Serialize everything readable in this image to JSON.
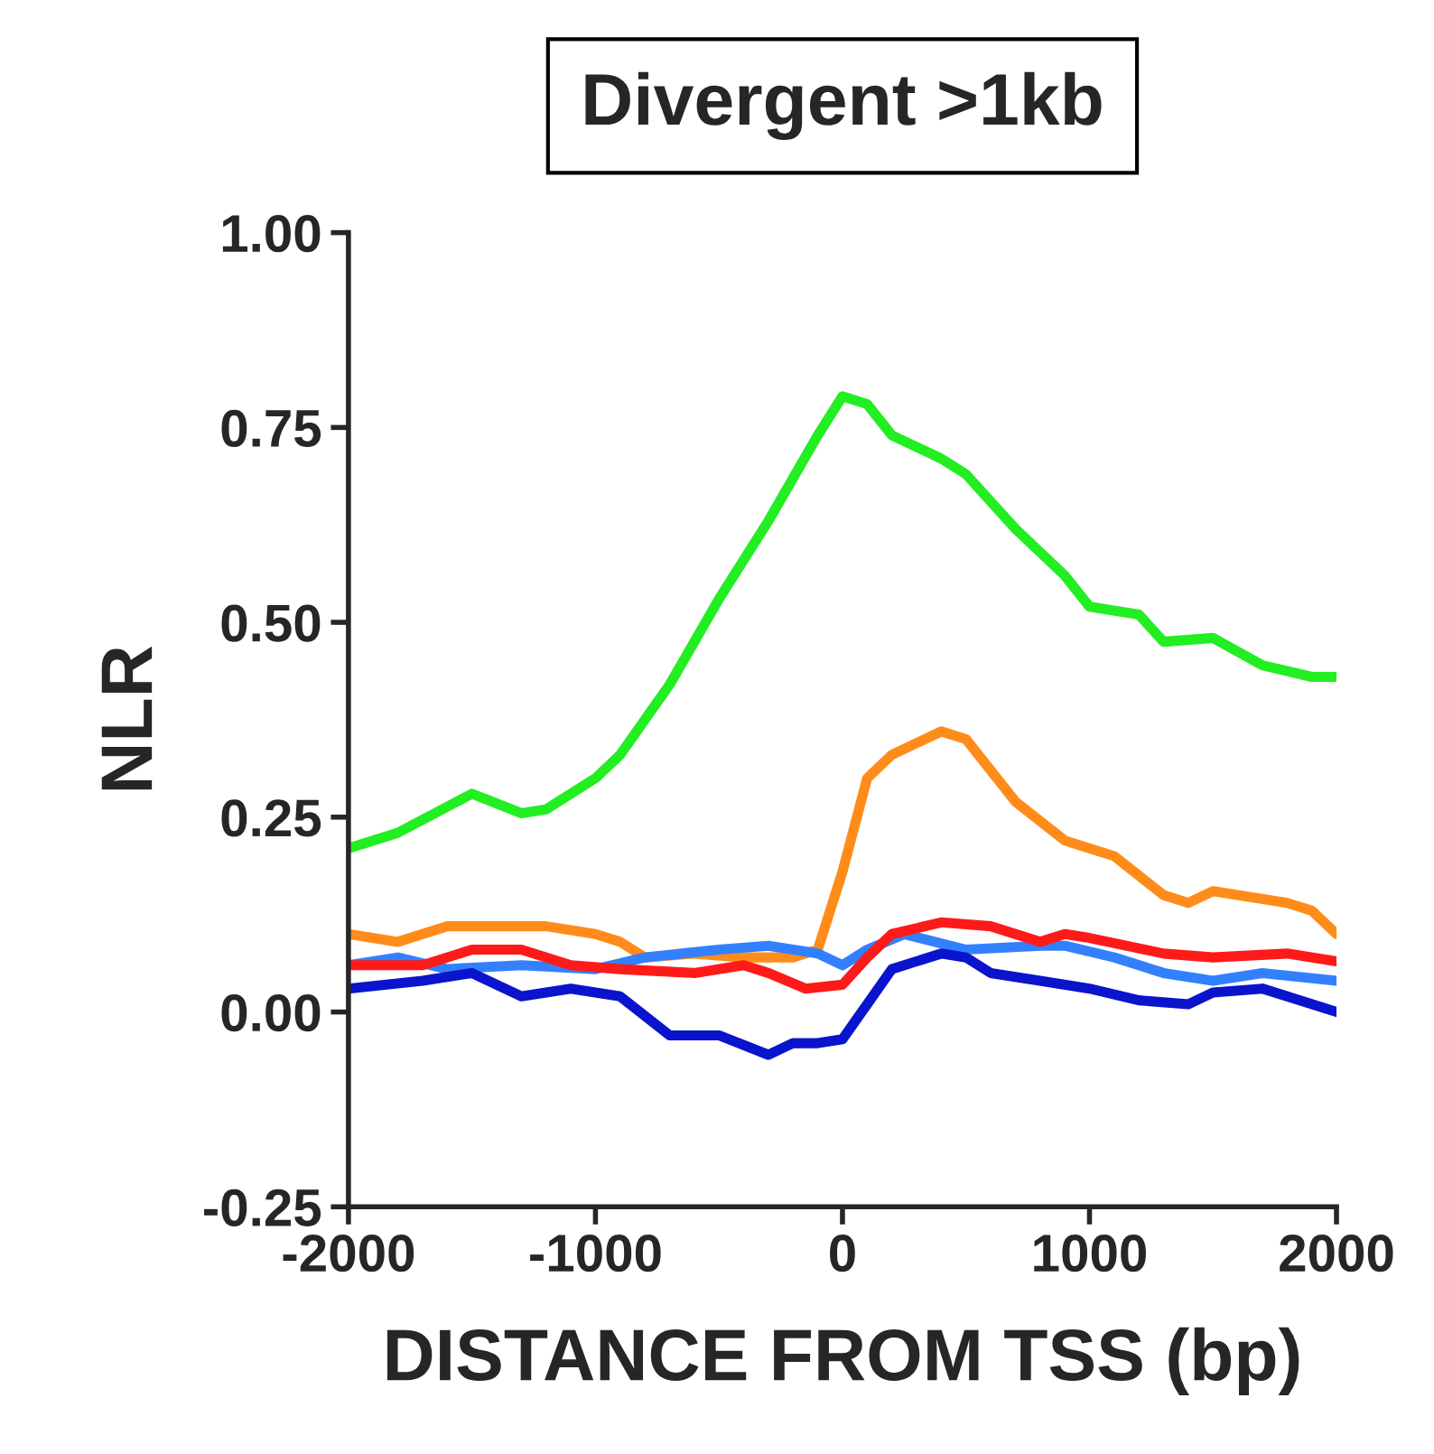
{
  "chart_data": {
    "type": "line",
    "title": "Divergent >1kb",
    "xlabel": "DISTANCE FROM TSS (bp)",
    "ylabel": "NLR",
    "xlim": [
      -2000,
      2000
    ],
    "xticks": [
      {
        "value": -2000,
        "label": "-2000"
      },
      {
        "value": -1000,
        "label": "-1000"
      },
      0,
      1000,
      2000
    ],
    "ylim": [
      -0.25,
      1.0
    ],
    "yticks": [
      {
        "value": -0.25,
        "label": "-0.25"
      },
      {
        "value": 0,
        "label": "0.00"
      },
      {
        "value": 0.25,
        "label": "0.25"
      },
      {
        "value": 0.5,
        "label": "0.50"
      },
      {
        "value": 0.75,
        "label": "0.75"
      },
      {
        "value": 1.0,
        "label": "1.00"
      }
    ],
    "grid": false,
    "legend": false,
    "marker": "none",
    "line_style": "solid",
    "series": [
      {
        "color": "#22ee22",
        "x": [
          -2000,
          -1800,
          -1500,
          -1300,
          -1200,
          -1000,
          -900,
          -700,
          -500,
          -300,
          -100,
          0,
          100,
          200,
          400,
          500,
          700,
          900,
          1000,
          1200,
          1300,
          1500,
          1700,
          1900,
          2000
        ],
        "values": [
          0.21,
          0.23,
          0.28,
          0.255,
          0.26,
          0.3,
          0.33,
          0.42,
          0.53,
          0.63,
          0.74,
          0.79,
          0.78,
          0.74,
          0.71,
          0.69,
          0.62,
          0.56,
          0.52,
          0.51,
          0.475,
          0.48,
          0.445,
          0.43,
          0.43
        ]
      },
      {
        "color": "#ff8c1a",
        "x": [
          -2000,
          -1800,
          -1600,
          -1200,
          -1000,
          -900,
          -800,
          -600,
          -400,
          -200,
          -100,
          0,
          100,
          200,
          400,
          500,
          700,
          900,
          1100,
          1300,
          1400,
          1500,
          1800,
          1900,
          2000
        ],
        "values": [
          0.1,
          0.09,
          0.11,
          0.11,
          0.1,
          0.09,
          0.07,
          0.075,
          0.07,
          0.07,
          0.08,
          0.18,
          0.3,
          0.33,
          0.36,
          0.35,
          0.27,
          0.22,
          0.2,
          0.15,
          0.14,
          0.155,
          0.14,
          0.13,
          0.1
        ]
      },
      {
        "color": "#3380ff",
        "x": [
          -2000,
          -1800,
          -1600,
          -1300,
          -1000,
          -800,
          -500,
          -300,
          -100,
          0,
          100,
          250,
          500,
          800,
          900,
          1100,
          1300,
          1500,
          1700,
          2000
        ],
        "values": [
          0.06,
          0.07,
          0.055,
          0.06,
          0.055,
          0.07,
          0.08,
          0.085,
          0.075,
          0.06,
          0.08,
          0.1,
          0.08,
          0.085,
          0.085,
          0.07,
          0.05,
          0.04,
          0.05,
          0.04
        ]
      },
      {
        "color": "#ff1a1a",
        "x": [
          -2000,
          -1700,
          -1500,
          -1300,
          -1100,
          -900,
          -600,
          -400,
          -300,
          -150,
          0,
          100,
          200,
          400,
          600,
          800,
          900,
          1000,
          1300,
          1500,
          1800,
          2000
        ],
        "values": [
          0.06,
          0.06,
          0.08,
          0.08,
          0.06,
          0.055,
          0.05,
          0.06,
          0.05,
          0.03,
          0.035,
          0.07,
          0.1,
          0.115,
          0.11,
          0.09,
          0.1,
          0.095,
          0.075,
          0.07,
          0.075,
          0.065
        ]
      },
      {
        "color": "#0a14cc",
        "x": [
          -2000,
          -1700,
          -1500,
          -1300,
          -1100,
          -900,
          -700,
          -500,
          -300,
          -200,
          -100,
          0,
          100,
          200,
          400,
          500,
          600,
          800,
          1000,
          1200,
          1400,
          1500,
          1700,
          2000
        ],
        "values": [
          0.03,
          0.04,
          0.05,
          0.02,
          0.03,
          0.02,
          -0.03,
          -0.03,
          -0.055,
          -0.04,
          -0.04,
          -0.035,
          0.01,
          0.055,
          0.075,
          0.07,
          0.05,
          0.04,
          0.03,
          0.015,
          0.01,
          0.025,
          0.03,
          0.0
        ]
      }
    ]
  }
}
